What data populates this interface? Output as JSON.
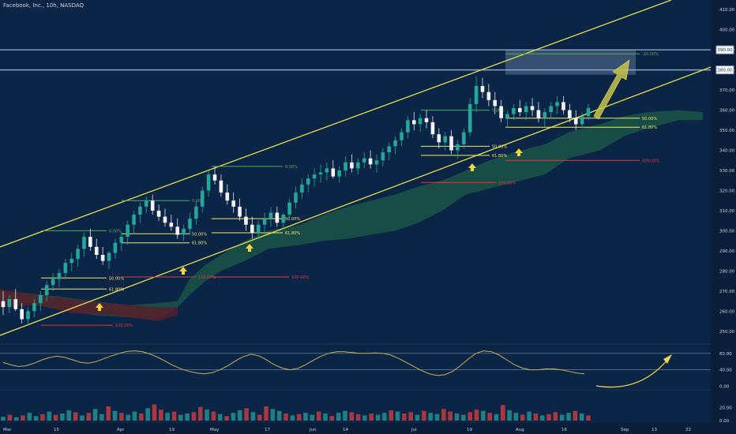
{
  "header": {
    "symbol_line": "Facebook, Inc., 10h, NASDAQ"
  },
  "colors": {
    "background": "#0b2547",
    "up": "#26a69a",
    "down": "#ef5350",
    "channel": "#e8e04a",
    "fib_zero": "#4caf50",
    "fib_mid": "#f5e663",
    "fib_hundred": "#e53935",
    "cloud_green": "#1e5a46",
    "cloud_red": "#5a1e2a",
    "oscillator": "#c9b14f",
    "arrow": "#f2d542"
  },
  "chart_data": [
    {
      "type": "candlestick",
      "title": "",
      "price_axis": {
        "ticks": [
          "410.00",
          "400.00",
          "390.00",
          "380.00",
          "370.00",
          "360.00",
          "350.00",
          "340.00",
          "330.00",
          "320.00",
          "310.00",
          "300.00",
          "290.00",
          "280.00",
          "270.00",
          "260.00",
          "250.00"
        ],
        "ylim": [
          246,
          414
        ]
      },
      "time_axis": {
        "ticks": [
          "Mar",
          "15",
          "Apr",
          "19",
          "May",
          "17",
          "Jun",
          "14",
          "Jul",
          "19",
          "Aug",
          "16",
          "Sep",
          "13",
          "22"
        ]
      },
      "horizontal_levels": [
        {
          "label": "390.00",
          "value": 390
        },
        {
          "label": "380.00",
          "value": 380
        }
      ],
      "target_label": "-20.00%",
      "candles_ohlc": [
        [
          265,
          270,
          258,
          262
        ],
        [
          262,
          268,
          259,
          266
        ],
        [
          266,
          271,
          260,
          261
        ],
        [
          261,
          264,
          254,
          256
        ],
        [
          256,
          262,
          253,
          260
        ],
        [
          260,
          266,
          257,
          264
        ],
        [
          264,
          270,
          260,
          268
        ],
        [
          268,
          275,
          265,
          273
        ],
        [
          273,
          279,
          270,
          276
        ],
        [
          276,
          281,
          272,
          279
        ],
        [
          279,
          286,
          276,
          284
        ],
        [
          284,
          289,
          280,
          286
        ],
        [
          286,
          293,
          282,
          291
        ],
        [
          291,
          299,
          287,
          297
        ],
        [
          297,
          301,
          290,
          292
        ],
        [
          292,
          296,
          286,
          288
        ],
        [
          288,
          292,
          283,
          285
        ],
        [
          285,
          290,
          281,
          289
        ],
        [
          289,
          296,
          286,
          294
        ],
        [
          294,
          299,
          290,
          297
        ],
        [
          297,
          305,
          293,
          303
        ],
        [
          303,
          310,
          299,
          308
        ],
        [
          308,
          314,
          304,
          312
        ],
        [
          312,
          317,
          309,
          315
        ],
        [
          315,
          318,
          308,
          310
        ],
        [
          310,
          313,
          305,
          307
        ],
        [
          307,
          311,
          302,
          304
        ],
        [
          304,
          308,
          300,
          302
        ],
        [
          302,
          306,
          296,
          298
        ],
        [
          298,
          303,
          295,
          301
        ],
        [
          301,
          309,
          298,
          306
        ],
        [
          306,
          315,
          303,
          312
        ],
        [
          312,
          322,
          309,
          320
        ],
        [
          320,
          330,
          317,
          328
        ],
        [
          328,
          332,
          323,
          325
        ],
        [
          325,
          328,
          317,
          319
        ],
        [
          319,
          323,
          313,
          315
        ],
        [
          315,
          319,
          309,
          312
        ],
        [
          312,
          316,
          305,
          307
        ],
        [
          307,
          311,
          300,
          303
        ],
        [
          303,
          307,
          296,
          299
        ],
        [
          299,
          305,
          296,
          303
        ],
        [
          303,
          309,
          299,
          306
        ],
        [
          306,
          312,
          302,
          309
        ],
        [
          309,
          312,
          302,
          304
        ],
        [
          304,
          309,
          301,
          308
        ],
        [
          308,
          316,
          305,
          314
        ],
        [
          314,
          322,
          311,
          319
        ],
        [
          319,
          326,
          316,
          323
        ],
        [
          323,
          328,
          319,
          326
        ],
        [
          326,
          331,
          322,
          328
        ],
        [
          328,
          333,
          324,
          329
        ],
        [
          329,
          334,
          325,
          331
        ],
        [
          331,
          335,
          326,
          327
        ],
        [
          327,
          332,
          324,
          330
        ],
        [
          330,
          337,
          327,
          334
        ],
        [
          334,
          338,
          329,
          331
        ],
        [
          331,
          336,
          328,
          334
        ],
        [
          334,
          339,
          331,
          336
        ],
        [
          336,
          340,
          331,
          333
        ],
        [
          333,
          338,
          329,
          335
        ],
        [
          335,
          341,
          332,
          339
        ],
        [
          339,
          344,
          335,
          342
        ],
        [
          342,
          347,
          338,
          345
        ],
        [
          345,
          351,
          342,
          349
        ],
        [
          349,
          357,
          346,
          355
        ],
        [
          355,
          359,
          350,
          353
        ],
        [
          353,
          358,
          349,
          356
        ],
        [
          356,
          360,
          351,
          354
        ],
        [
          354,
          357,
          346,
          348
        ],
        [
          348,
          351,
          341,
          344
        ],
        [
          344,
          349,
          340,
          347
        ],
        [
          347,
          350,
          338,
          340
        ],
        [
          340,
          345,
          336,
          343
        ],
        [
          343,
          351,
          341,
          349
        ],
        [
          349,
          366,
          347,
          363
        ],
        [
          363,
          377,
          359,
          372
        ],
        [
          372,
          376,
          366,
          369
        ],
        [
          369,
          373,
          362,
          365
        ],
        [
          365,
          369,
          358,
          362
        ],
        [
          362,
          365,
          354,
          356
        ],
        [
          356,
          360,
          351,
          358
        ],
        [
          358,
          363,
          355,
          361
        ],
        [
          361,
          365,
          357,
          359
        ],
        [
          359,
          364,
          355,
          362
        ],
        [
          362,
          366,
          357,
          360
        ],
        [
          360,
          364,
          354,
          356
        ],
        [
          356,
          361,
          352,
          359
        ],
        [
          359,
          364,
          356,
          362
        ],
        [
          362,
          367,
          358,
          364
        ],
        [
          364,
          367,
          358,
          360
        ],
        [
          360,
          363,
          354,
          356
        ],
        [
          356,
          360,
          350,
          353
        ],
        [
          353,
          359,
          351,
          357
        ],
        [
          357,
          363,
          355,
          361
        ]
      ],
      "fib_sets": [
        {
          "zero": 300,
          "fifty": 276.5,
          "sixty_one": 271,
          "hundred": 253,
          "labels": [
            "0.00%",
            "50.00%",
            "61.80%",
            "100.00%"
          ]
        },
        {
          "zero": 315,
          "fifty": 298.5,
          "sixty_one": 294,
          "hundred": 277,
          "labels": [
            "0.00%",
            "50.00%",
            "61.80%",
            "100.00%"
          ]
        },
        {
          "zero": 332,
          "fifty": 306,
          "sixty_one": 299,
          "hundred": 277,
          "labels": [
            "0.00%",
            "50.00%",
            "61.80%",
            "100.00%"
          ]
        },
        {
          "zero": 360,
          "fifty": 342,
          "sixty_one": 337.5,
          "hundred": 324,
          "labels": [
            "0.00%",
            "50.00%",
            "61.80%",
            "100.00%"
          ]
        },
        {
          "zero": 388,
          "fifty": 356,
          "sixty_one": 351.5,
          "hundred": 335,
          "labels": [
            "-20.00%",
            "50.00%",
            "61.80%",
            "100.00%"
          ]
        }
      ]
    },
    {
      "type": "line",
      "title": "",
      "axis_ticks": [
        "80.00",
        "40.00",
        "0.00"
      ],
      "ylim": [
        -5,
        95
      ],
      "values": [
        58,
        52,
        48,
        50,
        56,
        64,
        70,
        73,
        70,
        64,
        58,
        56,
        60,
        67,
        74,
        80,
        85,
        86,
        84,
        78,
        70,
        60,
        50,
        42,
        36,
        32,
        30,
        33,
        40,
        50,
        62,
        72,
        78,
        74,
        64,
        52,
        44,
        40,
        43,
        52,
        63,
        73,
        80,
        84,
        84,
        82,
        80,
        80,
        81,
        80,
        76,
        68,
        58,
        48,
        38,
        30,
        26,
        28,
        36,
        50,
        66,
        80,
        86,
        84,
        76,
        64,
        52,
        44,
        40,
        40,
        42,
        42,
        40,
        36,
        32,
        30
      ]
    },
    {
      "type": "bar",
      "title": "",
      "axis_ticks": [
        "20.00",
        "0.00"
      ],
      "ylim": [
        0,
        44
      ],
      "values": [
        6,
        9,
        5,
        8,
        12,
        7,
        10,
        14,
        9,
        11,
        16,
        13,
        8,
        12,
        18,
        10,
        22,
        15,
        12,
        9,
        14,
        11,
        19,
        25,
        17,
        12,
        14,
        9,
        11,
        13,
        21,
        17,
        14,
        10,
        7,
        12,
        16,
        19,
        13,
        9,
        22,
        18,
        15,
        11,
        8,
        10,
        12,
        9,
        14,
        11,
        7,
        12,
        15,
        13,
        10,
        8,
        11,
        9,
        12,
        16,
        14,
        11,
        13,
        9,
        15,
        12,
        10,
        18,
        14,
        11,
        9,
        13,
        17,
        15,
        12,
        10,
        24,
        16,
        12,
        9,
        14,
        11,
        8,
        10,
        13,
        9,
        12,
        15,
        11,
        8
      ],
      "colors_up": [
        1,
        0,
        1,
        0,
        1,
        1,
        0,
        1,
        0,
        1,
        1,
        0,
        1,
        0,
        1,
        1,
        0,
        1,
        0,
        1,
        1,
        0,
        1,
        0,
        0,
        1,
        0,
        1,
        1,
        0,
        0,
        1,
        0,
        1,
        0,
        1,
        1,
        0,
        1,
        0,
        0,
        1,
        1,
        0,
        1,
        0,
        1,
        1,
        0,
        1,
        0,
        1,
        1,
        0,
        0,
        1,
        0,
        1,
        1,
        0,
        1,
        0,
        0,
        1,
        0,
        1,
        1,
        0,
        0,
        1,
        1,
        0,
        0,
        1,
        0,
        1,
        0,
        1,
        1,
        0,
        1,
        0,
        1,
        0,
        0,
        1,
        1,
        0,
        1,
        0
      ]
    }
  ]
}
